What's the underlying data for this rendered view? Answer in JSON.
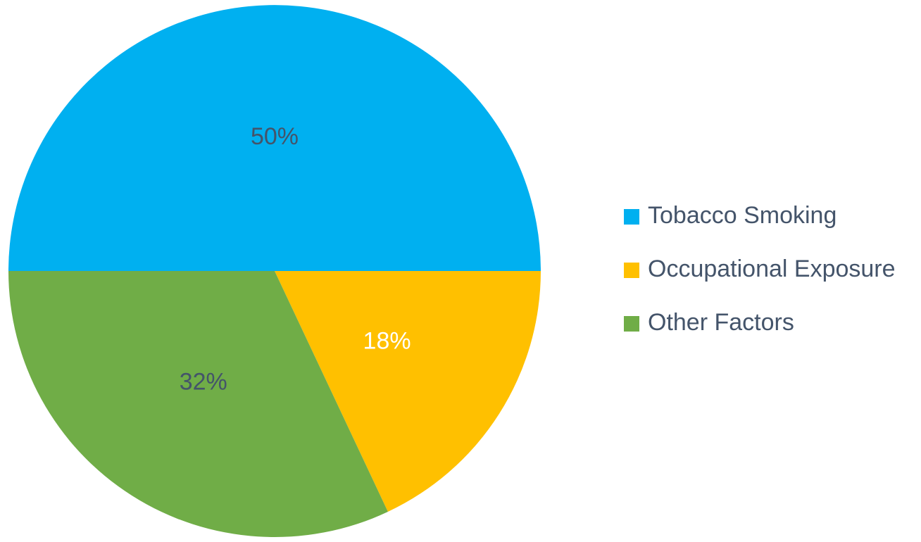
{
  "chart_data": {
    "type": "pie",
    "categories": [
      "Tobacco Smoking",
      "Occupational Exposure",
      "Other Factors"
    ],
    "values": [
      50,
      18,
      32
    ],
    "labels": [
      "50%",
      "18%",
      "32%"
    ],
    "colors": [
      "#00b0f0",
      "#ffc000",
      "#70ad47"
    ],
    "label_colors": [
      "#44546a",
      "#ffffff",
      "#44546a"
    ],
    "legend_position": "right",
    "start_angle_deg": 180,
    "direction": "clockwise"
  }
}
